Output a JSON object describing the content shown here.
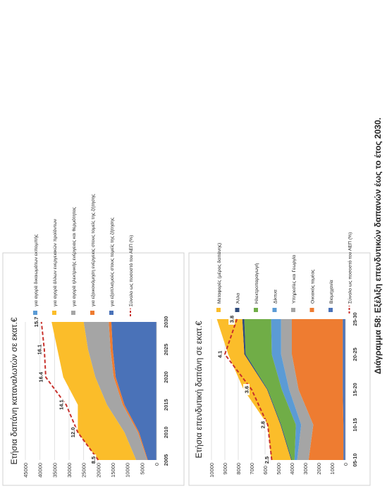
{
  "caption": "Διάγραμμα 58: Εξέλιξη επενδυτικών δαπανών έως το έτος 2030.",
  "colors": {
    "blue": "#4a72b8",
    "orange": "#ee7c31",
    "gray": "#a5a5a5",
    "yellow": "#fbbd2a",
    "lightblue": "#5b9bd5",
    "green": "#70ad47",
    "navy": "#2f4a7a",
    "red": "#c8312c",
    "grid": "#d9d9d9"
  },
  "chart_data": [
    {
      "type": "area",
      "title": "Ετήσια δαπάνη καταναλωτών σε εκατ.€",
      "x": [
        "2005",
        "2010",
        "2015",
        "2020",
        "2025",
        "2030"
      ],
      "ylim": [
        0,
        45000
      ],
      "yticks": [
        "0",
        "5000",
        "10000",
        "15000",
        "20000",
        "25000",
        "30000",
        "35000",
        "40000",
        "45000"
      ],
      "grid": true,
      "legend_position": "right",
      "series": [
        {
          "name": "για εξοπλισμούς στους τομείς της ζήτησης",
          "color": "blue",
          "values": [
            3000,
            6000,
            11000,
            14000,
            15000,
            15500
          ]
        },
        {
          "name": "για εξοικονόμηση ενέργειας στους τομείς της ζήτησης",
          "color": "orange",
          "values": [
            200,
            400,
            600,
            700,
            800,
            900
          ]
        },
        {
          "name": "για αγορά ηλεκτρικής ενέργειας και θερμότητας",
          "color": "gray",
          "values": [
            3800,
            4600,
            5400,
            6300,
            7700,
            8600
          ]
        },
        {
          "name": "για αγορά άλλων ενεργειακών προϊόντων",
          "color": "yellow",
          "values": [
            13000,
            16000,
            10000,
            11000,
            10500,
            11000
          ]
        },
        {
          "name": "για αγορά δικαιωμάτων εκπομπής",
          "color": "lightblue",
          "values": [
            0,
            0,
            0,
            0,
            0,
            0
          ]
        }
      ],
      "line": {
        "name": "Σύνολο ως ποσοστό του ΑΕΠ (%)",
        "color": "red",
        "labels": [
          "8.5",
          "12.0",
          "14.1",
          "16.4",
          "16.1",
          "15.7"
        ],
        "plot_values": [
          20000,
          27000,
          31000,
          38000,
          38500,
          39500
        ]
      }
    },
    {
      "type": "area",
      "title": "Ετήσια επενδυτική δαπάνη σε εκατ.€",
      "x": [
        "05-10",
        "10-15",
        "15-20",
        "20-25",
        "25-30"
      ],
      "ylim": [
        0,
        10000
      ],
      "yticks": [
        "0",
        "1000",
        "2000",
        "3000",
        "4000",
        "5000",
        "6000",
        "7000",
        "8000",
        "9000",
        "10000"
      ],
      "grid": true,
      "legend_position": "right",
      "series": [
        {
          "name": "Βιομηχανία",
          "color": "blue",
          "values": [
            150,
            150,
            200,
            200,
            200
          ]
        },
        {
          "name": "Οικιακός τομέας",
          "color": "orange",
          "values": [
            2600,
            2250,
            3300,
            3800,
            3800
          ]
        },
        {
          "name": "Υπηρεσίες και Γεωργία",
          "color": "gray",
          "values": [
            850,
            900,
            700,
            800,
            800
          ]
        },
        {
          "name": "Δίκτυα",
          "color": "lightblue",
          "values": [
            200,
            400,
            550,
            700,
            750
          ]
        },
        {
          "name": "Ηλεκτροπαραγωγή",
          "color": "green",
          "values": [
            200,
            1100,
            1050,
            1950,
            2000
          ]
        },
        {
          "name": "Άλλα",
          "color": "navy",
          "values": [
            50,
            50,
            50,
            100,
            150
          ]
        },
        {
          "name": "Μεταφορές (μέρος δαπάνης)",
          "color": "yellow",
          "values": [
            1500,
            950,
            1750,
            1200,
            1900
          ]
        }
      ],
      "line": {
        "name": "Σύνολο ως ποσοστό του ΑΕΠ (%)",
        "color": "red",
        "labels": [
          "2.5",
          "2.8",
          "3.6",
          "4.1",
          "3.8"
        ],
        "plot_values": [
          5500,
          5800,
          7000,
          9000,
          8100
        ]
      }
    }
  ]
}
